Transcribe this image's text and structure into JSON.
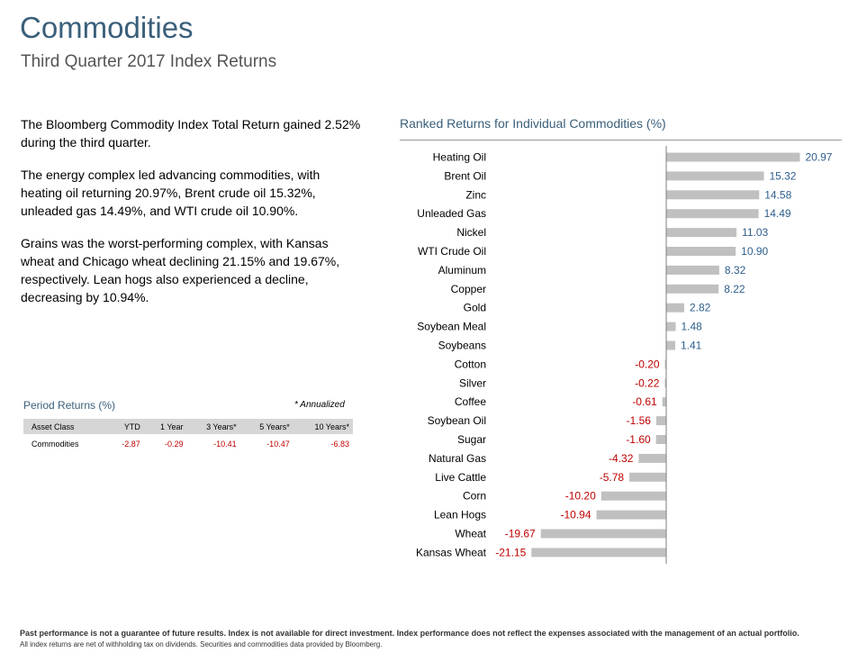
{
  "header": {
    "title": "Commodities",
    "subtitle": "Third Quarter 2017 Index Returns"
  },
  "body": {
    "paragraphs": [
      "The Bloomberg Commodity Index Total Return gained 2.52% during the third quarter.",
      "The energy complex led advancing commodities, with heating oil returning 20.97%, Brent crude oil 15.32%, unleaded gas 14.49%, and WTI crude oil 10.90%.",
      "Grains was the worst-performing complex, with Kansas wheat and Chicago wheat declining 21.15% and 19.67%, respectively. Lean hogs also experienced a decline, decreasing by 10.94%."
    ]
  },
  "period_returns": {
    "title": "Period Returns (%)",
    "note": "* Annualized",
    "headers": [
      "Asset Class",
      "YTD",
      "1 Year",
      "3 Years*",
      "5 Years*",
      "10 Years*"
    ],
    "row": {
      "label": "Commodities",
      "values": [
        "-2.87",
        "-0.29",
        "-10.41",
        "-10.47",
        "-6.83"
      ]
    }
  },
  "chart_data": {
    "type": "bar",
    "orientation": "horizontal",
    "title": "Ranked Returns for Individual Commodities (%)",
    "categories": [
      "Heating Oil",
      "Brent Oil",
      "Zinc",
      "Unleaded Gas",
      "Nickel",
      "WTI Crude Oil",
      "Aluminum",
      "Copper",
      "Gold",
      "Soybean Meal",
      "Soybeans",
      "Cotton",
      "Silver",
      "Coffee",
      "Soybean Oil",
      "Sugar",
      "Natural Gas",
      "Live Cattle",
      "Corn",
      "Lean Hogs",
      "Wheat",
      "Kansas Wheat"
    ],
    "values": [
      20.97,
      15.32,
      14.58,
      14.49,
      11.03,
      10.9,
      8.32,
      8.22,
      2.82,
      1.48,
      1.41,
      -0.2,
      -0.22,
      -0.61,
      -1.56,
      -1.6,
      -4.32,
      -5.78,
      -10.2,
      -10.94,
      -19.67,
      -21.15
    ],
    "value_labels": [
      "20.97",
      "15.32",
      "14.58",
      "14.49",
      "11.03",
      "10.90",
      "8.32",
      "8.22",
      "2.82",
      "1.48",
      "1.41",
      "-0.20",
      "-0.22",
      "-0.61",
      "-1.56",
      "-1.60",
      "-4.32",
      "-5.78",
      "-10.20",
      "-10.94",
      "-19.67",
      "-21.15"
    ],
    "xlim": [
      -21.15,
      20.97
    ],
    "grid": false,
    "colors": {
      "bar": "#c0c0c0",
      "positive_label": "#2e5e8c",
      "negative_label": "#c00000",
      "axis": "#7f7f7f"
    }
  },
  "footer": {
    "line1": "Past performance is not a guarantee of future results. Index is not available for direct investment. Index performance does not reflect the expenses associated with the management of an actual portfolio.",
    "line2": "All index returns are net of withholding tax on dividends. Securities and commodities data provided by Bloomberg."
  }
}
